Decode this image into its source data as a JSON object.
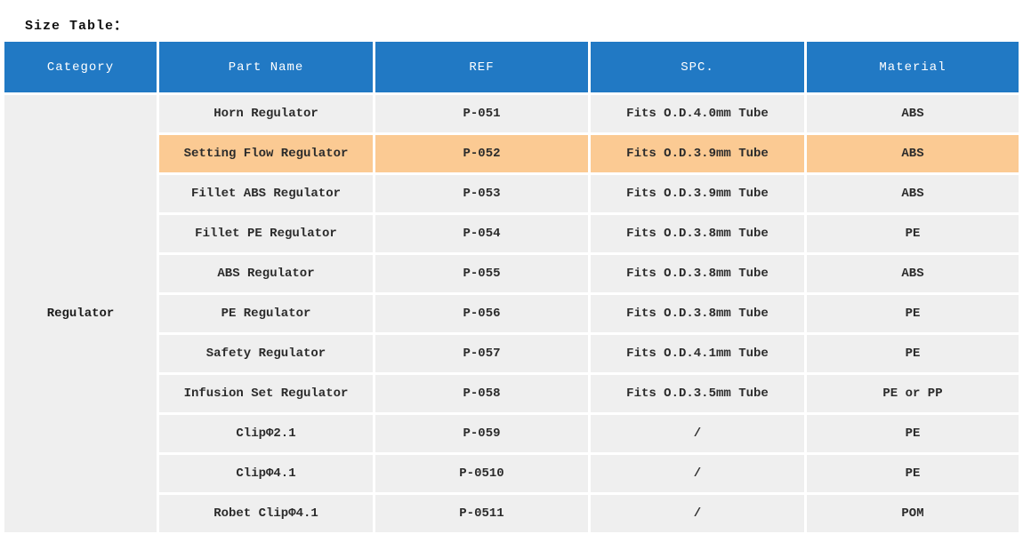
{
  "page": {
    "title": "Size Table："
  },
  "colors": {
    "header_bg": "#2179c4",
    "header_text": "#ffffff",
    "row_bg": "#efefef",
    "highlight_bg": "#fbca93",
    "body_text": "#2b2b2b"
  },
  "table": {
    "columns": [
      "Category",
      "Part Name",
      "REF",
      "SPC.",
      "Material"
    ],
    "category_label": "Regulator",
    "rows": [
      {
        "part_name": "Horn Regulator",
        "ref": "P-051",
        "spc": "Fits O.D.4.0mm Tube",
        "material": "ABS",
        "highlighted": false
      },
      {
        "part_name": "Setting Flow Regulator",
        "ref": "P-052",
        "spc": "Fits O.D.3.9mm Tube",
        "material": "ABS",
        "highlighted": true
      },
      {
        "part_name": "Fillet ABS Regulator",
        "ref": "P-053",
        "spc": "Fits O.D.3.9mm Tube",
        "material": "ABS",
        "highlighted": false
      },
      {
        "part_name": "Fillet PE Regulator",
        "ref": "P-054",
        "spc": "Fits O.D.3.8mm Tube",
        "material": "PE",
        "highlighted": false
      },
      {
        "part_name": "ABS Regulator",
        "ref": "P-055",
        "spc": "Fits O.D.3.8mm Tube",
        "material": "ABS",
        "highlighted": false
      },
      {
        "part_name": "PE Regulator",
        "ref": "P-056",
        "spc": "Fits O.D.3.8mm Tube",
        "material": "PE",
        "highlighted": false
      },
      {
        "part_name": "Safety Regulator",
        "ref": "P-057",
        "spc": "Fits O.D.4.1mm Tube",
        "material": "PE",
        "highlighted": false
      },
      {
        "part_name": "Infusion Set Regulator",
        "ref": "P-058",
        "spc": "Fits O.D.3.5mm Tube",
        "material": "PE or PP",
        "highlighted": false
      },
      {
        "part_name": "ClipΦ2.1",
        "ref": "P-059",
        "spc": "/",
        "material": "PE",
        "highlighted": false
      },
      {
        "part_name": "ClipΦ4.1",
        "ref": "P-0510",
        "spc": "/",
        "material": "PE",
        "highlighted": false
      },
      {
        "part_name": "Robet ClipΦ4.1",
        "ref": "P-0511",
        "spc": "/",
        "material": "POM",
        "highlighted": false
      }
    ]
  }
}
